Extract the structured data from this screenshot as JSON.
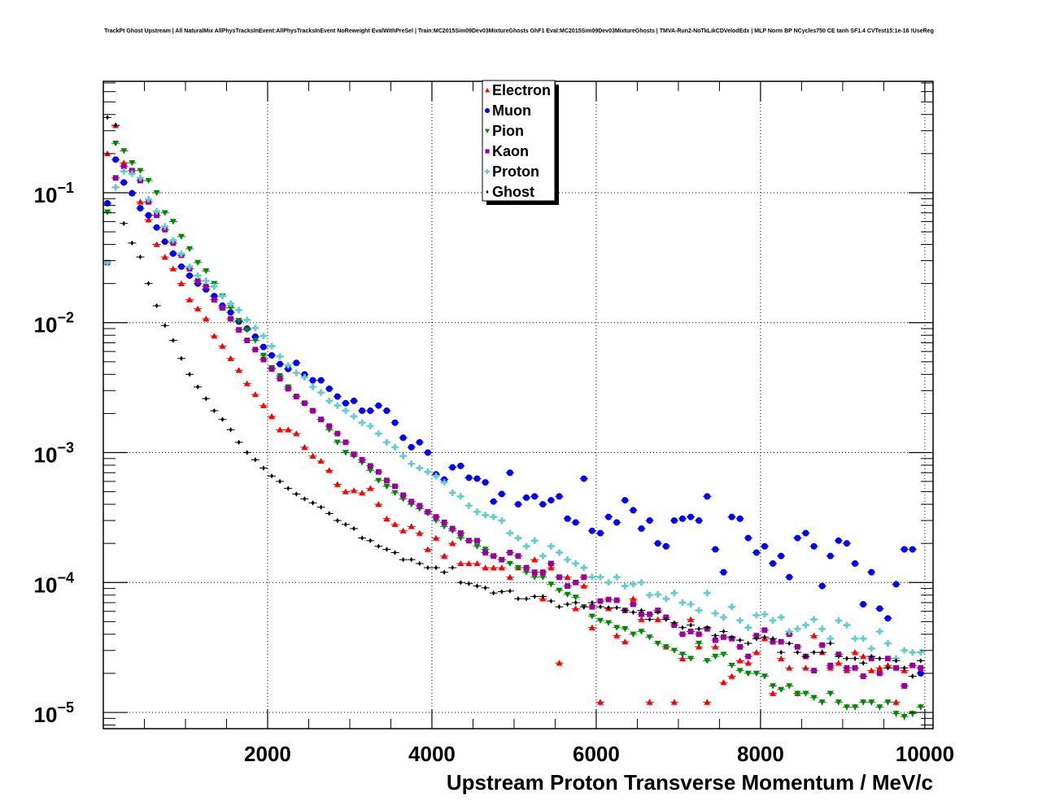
{
  "chart_data": {
    "type": "scatter",
    "title": "TrackPt Ghost Upstream | All NaturalMix AllPhysTracksInEvent:AllPhysTracksInEvent NoReweight EvalWithPreSel | Train:MC2015Sim09Dev03MixtureGhosts GhF1 Eval:MC2015Sim09Dev03MixtureGhosts | TMVA-Run2-NoTkLikCDVelodEdx | MLP Norm BP NCycles750 CE tanh SF1.4 CVTest15:1e-16 !UseReg",
    "xlabel": "Upstream Proton Transverse Momentum / MeV/c",
    "ylabel": "",
    "xlim": [
      0,
      10100
    ],
    "ylim": [
      7.5e-06,
      0.72
    ],
    "yscale": "log",
    "grid": true,
    "legend_position": "top-center",
    "bin_width": 100,
    "x_ticks": [
      {
        "value": 2000,
        "label": "2000"
      },
      {
        "value": 4000,
        "label": "4000"
      },
      {
        "value": 6000,
        "label": "6000"
      },
      {
        "value": 8000,
        "label": "8000"
      },
      {
        "value": 10000,
        "label": "10000"
      }
    ],
    "y_ticks": [
      {
        "value": 0.1,
        "base": "10",
        "exp": "−1"
      },
      {
        "value": 0.01,
        "base": "10",
        "exp": "−2"
      },
      {
        "value": 0.001,
        "base": "10",
        "exp": "−3"
      },
      {
        "value": 0.0001,
        "base": "10",
        "exp": "−4"
      },
      {
        "value": 1e-05,
        "base": "10",
        "exp": "−5"
      }
    ],
    "series": [
      {
        "name": "Electron",
        "color": "#ff0000",
        "marker": "triangle-up",
        "values": [
          0.2,
          0.33,
          0.17,
          0.1,
          0.085,
          0.062,
          0.04,
          0.032,
          0.026,
          0.02,
          0.015,
          0.0128,
          0.0107,
          0.0079,
          0.0066,
          0.0053,
          0.0043,
          0.0034,
          0.0028,
          0.0023,
          0.0019,
          0.0015,
          0.0015,
          0.0014,
          0.0011,
          0.00094,
          0.00086,
          0.00073,
          0.00057,
          0.0005,
          0.00051,
          0.00049,
          0.00053,
          0.0004,
          0.00031,
          0.00028,
          0.00025,
          0.00027,
          0.00024,
          0.00018,
          0.00022,
          0.00016,
          0.0002,
          0.00014,
          0.00014,
          0.00014,
          0.00013,
          0.00013,
          0.00013,
          0.00011,
          0.00013,
          0.00013,
          0.00015,
          7.5e-05,
          0.00013,
          2.4e-05,
          0.00011,
          6.3e-05,
          9.4e-05,
          4.5e-05,
          1.2e-05,
          6.3e-05,
          3.9e-05,
          3.5e-05,
          7.5e-05,
          5.2e-05,
          1.2e-05,
          5.2e-05,
          3.2e-05,
          1.2e-05,
          2.6e-05,
          5.2e-05,
          3.2e-05,
          1.2e-05,
          3.2e-05,
          1.7e-05,
          1.9e-05,
          2.5e-05,
          2.4e-05,
          2.9e-05,
          3.7e-05,
          1.4e-05,
          2.6e-05,
          2.2e-05,
          1.4e-05,
          2.2e-05,
          3.9e-05,
          2.9e-05,
          2.2e-05,
          2.4e-05,
          2.1e-05,
          2.9e-05,
          2.7e-05,
          2.1e-05,
          2.2e-05,
          2.3e-05,
          1.2e-05,
          2.1e-05,
          2.3e-05,
          2.2e-05
        ]
      },
      {
        "name": "Muon",
        "color": "#0000ff",
        "marker": "circle",
        "values": [
          0.083,
          0.18,
          0.12,
          0.099,
          0.076,
          0.067,
          0.054,
          0.042,
          0.034,
          0.027,
          0.023,
          0.02,
          0.018,
          0.016,
          0.0135,
          0.012,
          0.0102,
          0.009,
          0.0078,
          0.0065,
          0.0056,
          0.0048,
          0.0044,
          0.0049,
          0.004,
          0.0036,
          0.0036,
          0.0031,
          0.0027,
          0.0024,
          0.0025,
          0.0021,
          0.0021,
          0.0023,
          0.0021,
          0.0017,
          0.0013,
          0.0011,
          0.0012,
          0.001,
          0.00068,
          0.00062,
          0.00077,
          0.00079,
          0.00064,
          0.00063,
          0.00059,
          0.00042,
          0.00048,
          0.0007,
          0.0004,
          0.00045,
          0.00046,
          0.0004,
          0.00043,
          0.00046,
          0.00031,
          0.00029,
          0.00063,
          0.00025,
          0.00024,
          0.00032,
          0.00029,
          0.00043,
          0.00036,
          0.00026,
          0.0003,
          0.0002,
          0.00019,
          0.0003,
          0.00031,
          0.00032,
          0.0003,
          0.00046,
          0.00018,
          0.00012,
          0.00032,
          0.00031,
          0.00022,
          0.00017,
          0.00019,
          0.00014,
          0.00016,
          0.00011,
          0.00022,
          0.00024,
          0.00019,
          9.4e-05,
          0.00016,
          0.00021,
          0.0002,
          0.00014,
          6.8e-05,
          0.00012,
          6.3e-05,
          5.3e-05,
          9.7e-05,
          0.00018,
          0.00018,
          2e-05
        ]
      },
      {
        "name": "Pion",
        "color": "#008800",
        "marker": "triangle-down",
        "values": [
          0.071,
          0.24,
          0.21,
          0.17,
          0.148,
          0.124,
          0.1,
          0.07,
          0.06,
          0.046,
          0.037,
          0.029,
          0.025,
          0.02,
          0.016,
          0.013,
          0.0104,
          0.0088,
          0.0073,
          0.0056,
          0.0045,
          0.0039,
          0.0032,
          0.0027,
          0.0024,
          0.0021,
          0.0018,
          0.0015,
          0.0012,
          0.001,
          0.00094,
          0.00084,
          0.00073,
          0.00061,
          0.00055,
          0.00049,
          0.00044,
          0.0004,
          0.00037,
          0.00034,
          0.0003,
          0.00027,
          0.00025,
          0.00022,
          0.00021,
          0.00019,
          0.00018,
          0.00016,
          0.00015,
          0.00014,
          0.00013,
          0.00012,
          0.00011,
          0.00011,
          9.7e-05,
          8.7e-05,
          8.1e-05,
          7.7e-05,
          6.5e-05,
          5.5e-05,
          5.1e-05,
          4.9e-05,
          4.5e-05,
          4.4e-05,
          4e-05,
          4.2e-05,
          3.8e-05,
          3.4e-05,
          3.2e-05,
          3e-05,
          2.8e-05,
          2.6e-05,
          3.4e-05,
          2.5e-05,
          2.7e-05,
          2.8e-05,
          2.3e-05,
          2.1e-05,
          2e-05,
          2e-05,
          1.9e-05,
          1.6e-05,
          1.5e-05,
          1.6e-05,
          1.4e-05,
          1.4e-05,
          1.3e-05,
          1.2e-05,
          1.4e-05,
          1.2e-05,
          1.1e-05,
          1.1e-05,
          1.2e-05,
          1.2e-05,
          1.1e-05,
          1.2e-05,
          9.8e-06,
          9.3e-06,
          9.8e-06,
          1.1e-05
        ]
      },
      {
        "name": "Kaon",
        "color": "#990099",
        "marker": "square",
        "values": [
          0.029,
          0.13,
          0.16,
          0.148,
          0.124,
          0.085,
          0.067,
          0.052,
          0.041,
          0.033,
          0.026,
          0.021,
          0.019,
          0.015,
          0.013,
          0.0107,
          0.0088,
          0.0073,
          0.0062,
          0.0052,
          0.0044,
          0.0037,
          0.0031,
          0.0027,
          0.0024,
          0.0021,
          0.0018,
          0.0016,
          0.0014,
          0.0012,
          0.00097,
          0.00088,
          0.00079,
          0.00071,
          0.00061,
          0.00055,
          0.00047,
          0.00042,
          0.00039,
          0.00035,
          0.00032,
          0.00029,
          0.00026,
          0.00024,
          0.00021,
          0.00021,
          0.00017,
          0.00016,
          0.00015,
          0.00017,
          0.00016,
          0.00013,
          0.00012,
          0.00012,
          0.00014,
          0.00011,
          9.4e-05,
          0.0001,
          0.00011,
          6.5e-05,
          7.2e-05,
          7.4e-05,
          7.3e-05,
          6.1e-05,
          6.8e-05,
          5.7e-05,
          5.7e-05,
          6.1e-05,
          5.4e-05,
          4.7e-05,
          4e-05,
          4.2e-05,
          4e-05,
          4.4e-05,
          3.6e-05,
          3.8e-05,
          3.7e-05,
          3.2e-05,
          2.7e-05,
          3.9e-05,
          4.3e-05,
          3.5e-05,
          3.5e-05,
          4e-05,
          3.2e-05,
          2.7e-05,
          2.1e-05,
          3.3e-05,
          2.3e-05,
          2.8e-05,
          2.2e-05,
          2.2e-05,
          1.9e-05,
          2.6e-05,
          2e-05,
          2.6e-05,
          2.2e-05,
          1.6e-05,
          2.3e-05,
          2.2e-05
        ]
      },
      {
        "name": "Proton",
        "color": "#66cccc",
        "marker": "cross",
        "values": [
          0.029,
          0.11,
          0.146,
          0.14,
          0.13,
          0.089,
          0.072,
          0.055,
          0.043,
          0.034,
          0.027,
          0.023,
          0.021,
          0.019,
          0.016,
          0.014,
          0.0125,
          0.0105,
          0.0091,
          0.0079,
          0.0066,
          0.0055,
          0.0047,
          0.0041,
          0.0038,
          0.0032,
          0.0029,
          0.0025,
          0.0023,
          0.0021,
          0.0019,
          0.0017,
          0.0016,
          0.0014,
          0.0012,
          0.0011,
          0.00094,
          0.00082,
          0.00076,
          0.00071,
          0.00066,
          0.00059,
          0.00049,
          0.00046,
          0.00039,
          0.00035,
          0.00033,
          0.00032,
          0.0003,
          0.00024,
          0.00022,
          0.00019,
          0.00021,
          0.00016,
          0.00019,
          0.00017,
          0.00015,
          0.00014,
          0.00013,
          0.00011,
          0.00011,
          0.0001,
          0.00011,
          9.4e-05,
          9.7e-05,
          0.0001,
          8e-05,
          8.1e-05,
          7.5e-05,
          8.3e-05,
          7e-05,
          6.8e-05,
          6.1e-05,
          8.3e-05,
          5.8e-05,
          5.4e-05,
          6.5e-05,
          5.1e-05,
          4.5e-05,
          5.6e-05,
          5.7e-05,
          5.1e-05,
          5.4e-05,
          4.2e-05,
          4.4e-05,
          4.7e-05,
          5.2e-05,
          4.4e-05,
          3.7e-05,
          5.1e-05,
          4.7e-05,
          3.7e-05,
          3.7e-05,
          3.1e-05,
          4.2e-05,
          3.4e-05,
          2.6e-05,
          3e-05,
          2.9e-05,
          2.9e-05
        ]
      },
      {
        "name": "Ghost",
        "color": "#000000",
        "marker": "diamond",
        "values": [
          0.38,
          0.33,
          0.058,
          0.041,
          0.032,
          0.02,
          0.0135,
          0.0095,
          0.0073,
          0.0053,
          0.004,
          0.0032,
          0.0026,
          0.0021,
          0.0018,
          0.0015,
          0.0012,
          0.001,
          0.00088,
          0.00076,
          0.00066,
          0.0006,
          0.00053,
          0.00048,
          0.00044,
          0.00041,
          0.00038,
          0.00034,
          0.0003,
          0.00028,
          0.00026,
          0.00022,
          0.00021,
          0.00019,
          0.00018,
          0.00017,
          0.00015,
          0.00015,
          0.00014,
          0.00013,
          0.00013,
          0.00012,
          0.00013,
          0.0001,
          9.8e-05,
          9.4e-05,
          9.1e-05,
          8.3e-05,
          8.5e-05,
          8.6e-05,
          7.5e-05,
          7.5e-05,
          7.8e-05,
          7.8e-05,
          7.2e-05,
          6.5e-05,
          6.8e-05,
          7e-05,
          6.5e-05,
          7e-05,
          6.5e-05,
          6.4e-05,
          6.4e-05,
          6.1e-05,
          5.9e-05,
          6.1e-05,
          5.2e-05,
          5.9e-05,
          5.2e-05,
          4.9e-05,
          4.5e-05,
          4.7e-05,
          4.4e-05,
          4.5e-05,
          3.9e-05,
          4.2e-05,
          3.8e-05,
          3.6e-05,
          3.4e-05,
          3.7e-05,
          3.8e-05,
          3.7e-05,
          2.9e-05,
          3.4e-05,
          2.9e-05,
          2.7e-05,
          2.9e-05,
          2.9e-05,
          3.4e-05,
          2.7e-05,
          2.6e-05,
          2.6e-05,
          2.4e-05,
          2.7e-05,
          2.6e-05,
          2.2e-05,
          2.5e-05,
          2.2e-05,
          1.9e-05,
          2.5e-05
        ]
      }
    ]
  }
}
